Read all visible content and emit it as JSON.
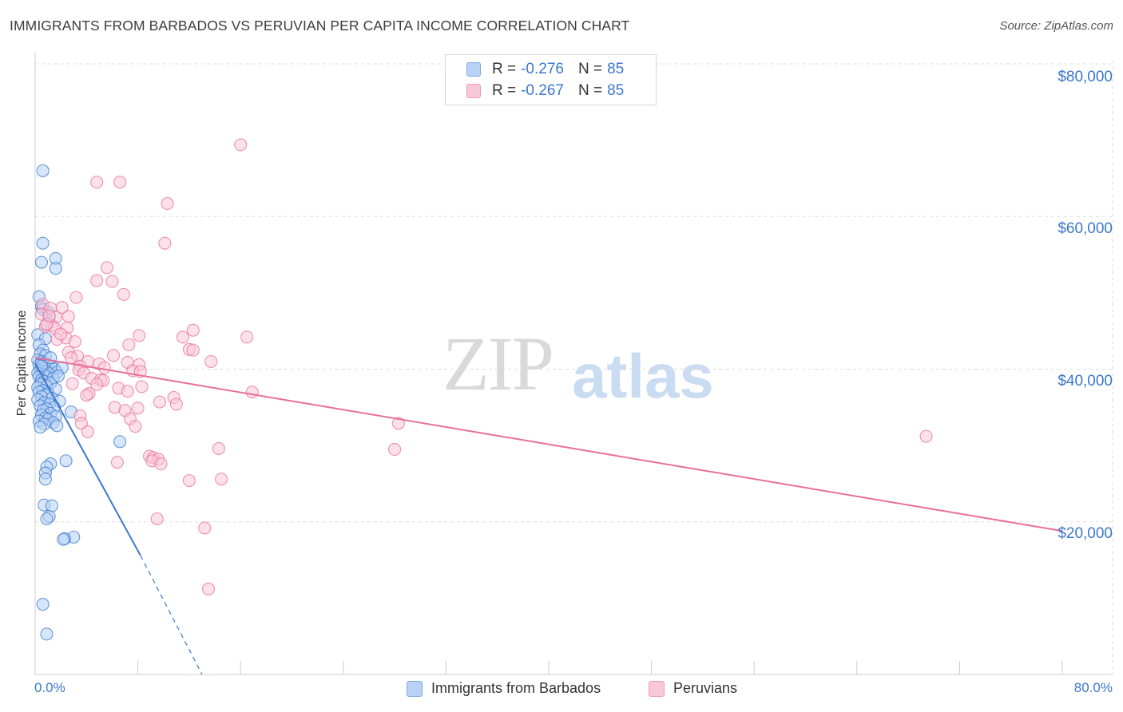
{
  "header": {
    "title": "IMMIGRANTS FROM BARBADOS VS PERUVIAN PER CAPITA INCOME CORRELATION CHART",
    "source": "Source: ZipAtlas.com"
  },
  "watermark": {
    "zip": "ZIP",
    "atlas": "atlas"
  },
  "legend": {
    "r_label": "R =",
    "n_label": "N =",
    "rows": [
      {
        "r": "-0.276",
        "n": "85",
        "color": "#3b78cc"
      },
      {
        "r": "-0.267",
        "n": "85",
        "color": "#e86f98"
      }
    ]
  },
  "bottom_legend": {
    "series1": "Immigrants from Barbados",
    "series2": "Peruvians"
  },
  "chart_data": {
    "type": "scatter",
    "title": "IMMIGRANTS FROM BARBADOS VS PERUVIAN PER CAPITA INCOME CORRELATION CHART",
    "xlabel": "",
    "ylabel": "Per Capita Income",
    "xlim": [
      0,
      80
    ],
    "ylim": [
      0,
      80000
    ],
    "x_tick_labels": [
      "0.0%",
      "80.0%"
    ],
    "y_tick_labels": [
      "$20,000",
      "$40,000",
      "$60,000",
      "$80,000"
    ],
    "y_ticks": [
      20000,
      40000,
      60000,
      80000
    ],
    "grid": true,
    "series": [
      {
        "name": "Immigrants from Barbados",
        "color": "#3b78cc",
        "fill": "#b7d2f5",
        "trend": {
          "x0": 0,
          "y0": 40800,
          "x1": 8.2,
          "y1": 15600,
          "dash_to_x": 13,
          "dash_to_y": 0
        },
        "points": [
          [
            0.6,
            66000
          ],
          [
            0.6,
            56500
          ],
          [
            0.5,
            54000
          ],
          [
            1.6,
            54500
          ],
          [
            1.6,
            53200
          ],
          [
            0.3,
            49500
          ],
          [
            0.5,
            48200
          ],
          [
            0.6,
            47800
          ],
          [
            1.0,
            47500
          ],
          [
            1.1,
            46800
          ],
          [
            0.2,
            44500
          ],
          [
            0.8,
            44000
          ],
          [
            0.3,
            43200
          ],
          [
            0.6,
            42500
          ],
          [
            0.4,
            42000
          ],
          [
            0.8,
            41800
          ],
          [
            0.2,
            41200
          ],
          [
            0.5,
            41000
          ],
          [
            0.7,
            40800
          ],
          [
            1.0,
            40600
          ],
          [
            0.3,
            40500
          ],
          [
            1.3,
            40300
          ],
          [
            0.6,
            40100
          ],
          [
            1.5,
            40000
          ],
          [
            0.4,
            39800
          ],
          [
            0.9,
            39700
          ],
          [
            1.7,
            39600
          ],
          [
            0.2,
            39500
          ],
          [
            1.1,
            39400
          ],
          [
            0.6,
            39300
          ],
          [
            0.8,
            39200
          ],
          [
            0.3,
            39000
          ],
          [
            1.4,
            38800
          ],
          [
            0.5,
            38600
          ],
          [
            0.7,
            38400
          ],
          [
            1.2,
            38200
          ],
          [
            0.4,
            38000
          ],
          [
            0.9,
            37800
          ],
          [
            0.2,
            37600
          ],
          [
            1.6,
            37400
          ],
          [
            0.6,
            37200
          ],
          [
            0.3,
            37000
          ],
          [
            1.0,
            36800
          ],
          [
            0.8,
            36600
          ],
          [
            0.5,
            36400
          ],
          [
            1.3,
            36200
          ],
          [
            0.2,
            36000
          ],
          [
            1.9,
            35800
          ],
          [
            0.7,
            35600
          ],
          [
            1.1,
            35400
          ],
          [
            0.4,
            35200
          ],
          [
            1.5,
            35000
          ],
          [
            0.9,
            34800
          ],
          [
            0.6,
            34600
          ],
          [
            2.8,
            34400
          ],
          [
            1.2,
            34200
          ],
          [
            0.5,
            34000
          ],
          [
            1.6,
            33800
          ],
          [
            0.8,
            33600
          ],
          [
            1.0,
            33400
          ],
          [
            0.3,
            33200
          ],
          [
            1.4,
            33000
          ],
          [
            0.7,
            32800
          ],
          [
            1.7,
            32600
          ],
          [
            0.4,
            32400
          ],
          [
            6.6,
            30500
          ],
          [
            2.4,
            28000
          ],
          [
            1.2,
            27600
          ],
          [
            0.9,
            27200
          ],
          [
            0.8,
            26400
          ],
          [
            0.8,
            25600
          ],
          [
            0.7,
            22200
          ],
          [
            1.3,
            22100
          ],
          [
            1.1,
            20700
          ],
          [
            0.9,
            20400
          ],
          [
            3.0,
            18000
          ],
          [
            2.3,
            17800
          ],
          [
            2.2,
            17700
          ],
          [
            0.6,
            9200
          ],
          [
            0.9,
            5300
          ],
          [
            2.1,
            40200
          ],
          [
            1.8,
            39100
          ],
          [
            0.5,
            40400
          ],
          [
            1.2,
            41500
          ],
          [
            0.9,
            45800
          ]
        ]
      },
      {
        "name": "Peruvians",
        "color": "#e86f98",
        "fill": "#f9c8d8",
        "trend": {
          "x0": 0,
          "y0": 41500,
          "x1": 80,
          "y1": 18800
        },
        "points": [
          [
            16.0,
            69400
          ],
          [
            4.8,
            64500
          ],
          [
            6.6,
            64500
          ],
          [
            10.3,
            61700
          ],
          [
            10.1,
            56500
          ],
          [
            5.6,
            53300
          ],
          [
            4.8,
            51600
          ],
          [
            6.0,
            51500
          ],
          [
            3.2,
            49400
          ],
          [
            6.9,
            49800
          ],
          [
            0.6,
            48500
          ],
          [
            1.2,
            48000
          ],
          [
            2.1,
            48100
          ],
          [
            0.5,
            47200
          ],
          [
            1.6,
            46800
          ],
          [
            2.6,
            46900
          ],
          [
            1.3,
            45700
          ],
          [
            0.8,
            45600
          ],
          [
            1.5,
            45400
          ],
          [
            2.5,
            45400
          ],
          [
            12.3,
            45100
          ],
          [
            8.1,
            44400
          ],
          [
            11.5,
            44200
          ],
          [
            16.5,
            44200
          ],
          [
            2.4,
            44100
          ],
          [
            1.7,
            43900
          ],
          [
            3.1,
            43600
          ],
          [
            7.3,
            43200
          ],
          [
            12.0,
            42600
          ],
          [
            12.3,
            42500
          ],
          [
            2.6,
            42200
          ],
          [
            3.3,
            41700
          ],
          [
            2.8,
            41500
          ],
          [
            4.1,
            41000
          ],
          [
            13.7,
            41000
          ],
          [
            7.2,
            40900
          ],
          [
            5.0,
            40700
          ],
          [
            8.1,
            40600
          ],
          [
            3.5,
            40400
          ],
          [
            5.4,
            40200
          ],
          [
            3.4,
            39900
          ],
          [
            7.6,
            39800
          ],
          [
            8.2,
            39700
          ],
          [
            3.8,
            39500
          ],
          [
            4.4,
            38800
          ],
          [
            5.1,
            38600
          ],
          [
            5.3,
            38500
          ],
          [
            2.9,
            38100
          ],
          [
            4.8,
            38000
          ],
          [
            8.3,
            37700
          ],
          [
            6.5,
            37500
          ],
          [
            7.2,
            37100
          ],
          [
            16.9,
            37000
          ],
          [
            4.2,
            36800
          ],
          [
            4.0,
            36600
          ],
          [
            10.8,
            36300
          ],
          [
            9.7,
            35700
          ],
          [
            11.0,
            35400
          ],
          [
            6.2,
            35000
          ],
          [
            8.0,
            34900
          ],
          [
            7.0,
            34600
          ],
          [
            3.5,
            33900
          ],
          [
            7.4,
            33500
          ],
          [
            3.6,
            32900
          ],
          [
            28.3,
            32900
          ],
          [
            4.1,
            31800
          ],
          [
            7.8,
            32500
          ],
          [
            69.4,
            31200
          ],
          [
            14.3,
            29600
          ],
          [
            28.0,
            29500
          ],
          [
            8.9,
            28600
          ],
          [
            9.2,
            28400
          ],
          [
            9.6,
            28200
          ],
          [
            9.1,
            28000
          ],
          [
            6.4,
            27800
          ],
          [
            9.8,
            27600
          ],
          [
            12.0,
            25400
          ],
          [
            14.5,
            25600
          ],
          [
            9.5,
            20400
          ],
          [
            13.2,
            19200
          ],
          [
            13.5,
            11200
          ],
          [
            0.9,
            45900
          ],
          [
            2.0,
            44600
          ],
          [
            1.1,
            47000
          ],
          [
            6.1,
            41800
          ]
        ]
      }
    ]
  }
}
